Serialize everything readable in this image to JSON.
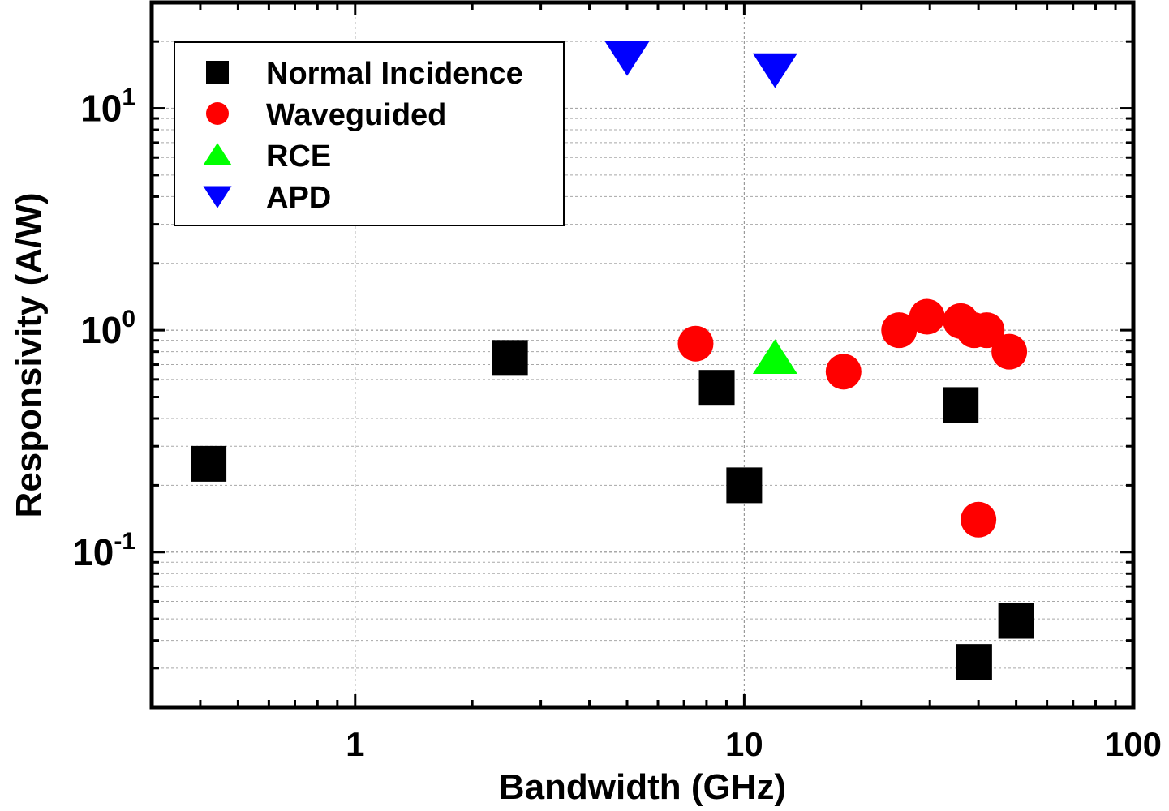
{
  "chart_data": {
    "type": "scatter",
    "title": "",
    "xlabel": "Bandwidth (GHz)",
    "ylabel": "Responsivity (A/W)",
    "xscale": "log",
    "yscale": "log",
    "xlim": [
      0.3,
      100
    ],
    "ylim": [
      0.02,
      30
    ],
    "grid": true,
    "legend_position": "top-left",
    "x_ticks": [
      {
        "value": 1,
        "label": "1"
      },
      {
        "value": 10,
        "label": "10"
      },
      {
        "value": 100,
        "label": "100"
      }
    ],
    "y_ticks": [
      {
        "value": 0.1,
        "base": "10",
        "exp": "-1"
      },
      {
        "value": 1,
        "base": "10",
        "exp": "0"
      },
      {
        "value": 10,
        "base": "10",
        "exp": "1"
      }
    ],
    "series": [
      {
        "name": "Normal Incidence",
        "marker": "square",
        "color": "#000000",
        "points": [
          {
            "x": 0.42,
            "y": 0.25
          },
          {
            "x": 2.5,
            "y": 0.75
          },
          {
            "x": 8.5,
            "y": 0.55
          },
          {
            "x": 10,
            "y": 0.2
          },
          {
            "x": 36,
            "y": 0.46
          },
          {
            "x": 39,
            "y": 0.032
          },
          {
            "x": 50,
            "y": 0.049
          }
        ]
      },
      {
        "name": "Waveguided",
        "marker": "circle",
        "color": "#ff0000",
        "points": [
          {
            "x": 7.5,
            "y": 0.87
          },
          {
            "x": 18,
            "y": 0.65
          },
          {
            "x": 25,
            "y": 1.0
          },
          {
            "x": 29.5,
            "y": 1.15
          },
          {
            "x": 36,
            "y": 1.1
          },
          {
            "x": 39,
            "y": 1.0
          },
          {
            "x": 42,
            "y": 1.0
          },
          {
            "x": 48,
            "y": 0.8
          },
          {
            "x": 40,
            "y": 0.14
          }
        ]
      },
      {
        "name": "RCE",
        "marker": "triangle-up",
        "color": "#00ff00",
        "points": [
          {
            "x": 12,
            "y": 0.75
          }
        ]
      },
      {
        "name": "APD",
        "marker": "triangle-down",
        "color": "#0000ff",
        "points": [
          {
            "x": 5,
            "y": 17
          },
          {
            "x": 12,
            "y": 15
          }
        ]
      }
    ]
  }
}
